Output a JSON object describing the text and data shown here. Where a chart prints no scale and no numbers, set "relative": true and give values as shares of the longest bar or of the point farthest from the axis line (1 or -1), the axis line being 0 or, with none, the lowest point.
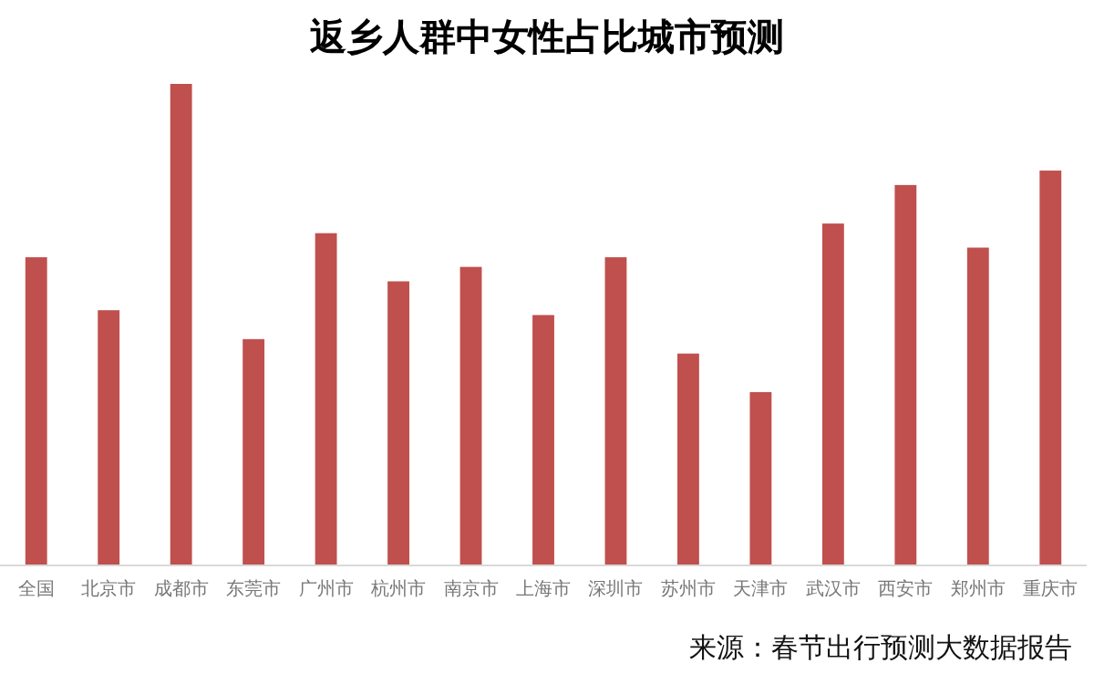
{
  "chart_data": {
    "type": "bar",
    "title": "返乡人群中女性占比城市预测",
    "relative": true,
    "categories": [
      "全国",
      "北京市",
      "成都市",
      "东莞市",
      "广州市",
      "杭州市",
      "南京市",
      "上海市",
      "深圳市",
      "苏州市",
      "天津市",
      "武汉市",
      "西安市",
      "郑州市",
      "重庆市"
    ],
    "values": [
      0.64,
      0.53,
      1,
      0.47,
      0.69,
      0.59,
      0.62,
      0.52,
      0.64,
      0.44,
      0.36,
      0.71,
      0.79,
      0.66,
      0.82
    ],
    "color": "#c0504d",
    "annotations": [
      "来源：春节出行预测大数据报告"
    ]
  }
}
